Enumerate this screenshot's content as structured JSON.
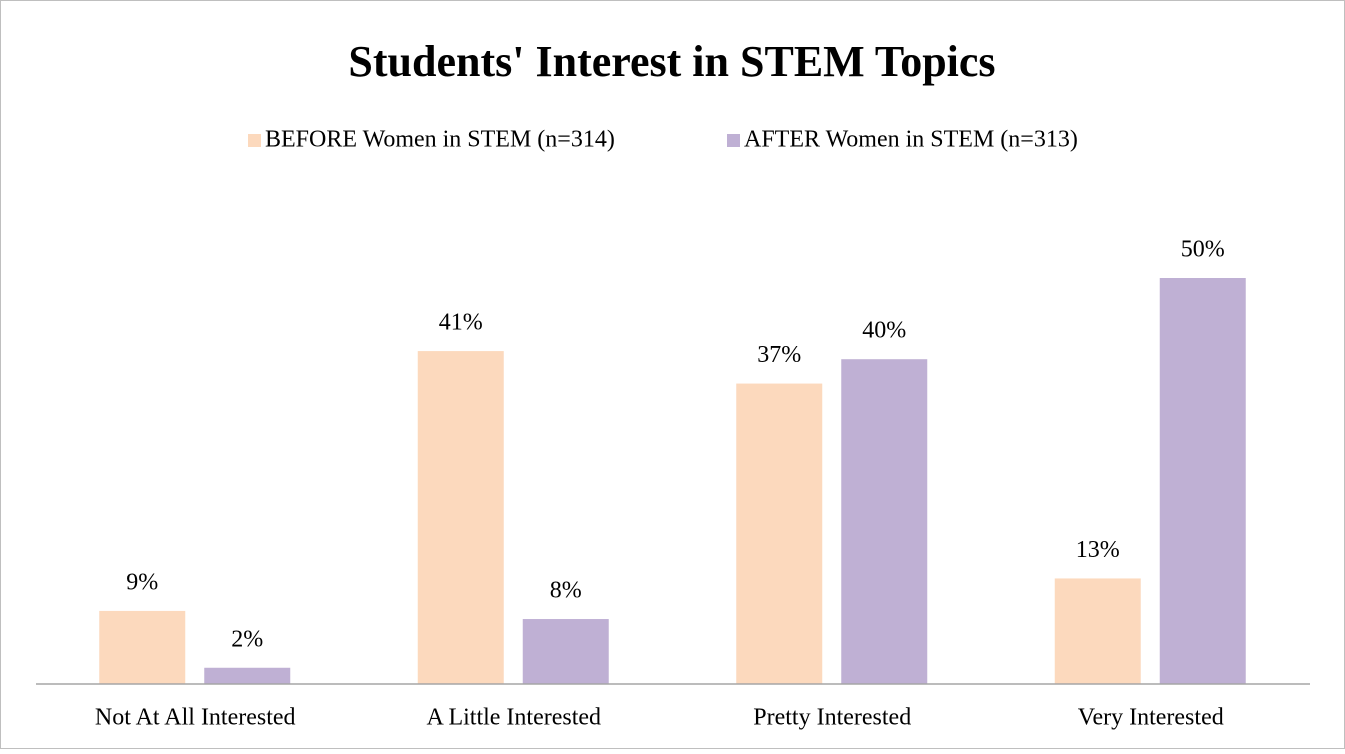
{
  "chart_data": {
    "type": "bar",
    "title": "Students' Interest in STEM Topics",
    "categories": [
      "Not At All Interested",
      "A Little Interested",
      "Pretty Interested",
      "Very Interested"
    ],
    "series": [
      {
        "name": "BEFORE Women in STEM (n=314)",
        "color": "#fcd9bd",
        "values": [
          9,
          41,
          37,
          13
        ],
        "value_labels": [
          "9%",
          "41%",
          "37%",
          "13%"
        ]
      },
      {
        "name": "AFTER Women in STEM (n=313)",
        "color": "#bfb0d4",
        "values": [
          2,
          8,
          40,
          50
        ],
        "value_labels": [
          "2%",
          "8%",
          "40%",
          "50%"
        ]
      }
    ],
    "legend": "top"
  }
}
